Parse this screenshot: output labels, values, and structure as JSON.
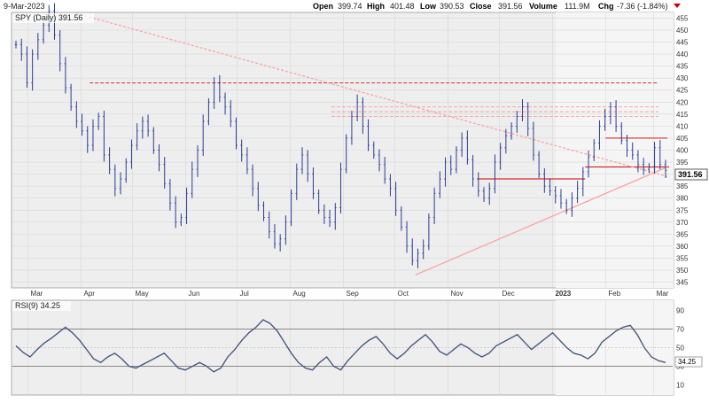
{
  "header": {
    "date": "9-Mar-2023",
    "open_label": "Open",
    "open": "399.74",
    "high_label": "High",
    "high": "401.48",
    "low_label": "Low",
    "low": "390.53",
    "close_label": "Close",
    "close": "391.56",
    "volume_label": "Volume",
    "volume": "111.9M",
    "chg_label": "Chg",
    "chg": "-7.36 (-1.84%)"
  },
  "price_panel": {
    "legend": "SPY (Daily) 391.56",
    "last_price": "391.56",
    "y_ticks": [
      "455",
      "450",
      "445",
      "440",
      "435",
      "430",
      "425",
      "420",
      "415",
      "410",
      "405",
      "400",
      "395",
      "390",
      "385",
      "380",
      "375",
      "370",
      "365",
      "360",
      "355",
      "350",
      "345"
    ]
  },
  "rsi_panel": {
    "legend": "RSI(9) 34.25",
    "last_value": "34.25",
    "y_ticks": [
      "90",
      "70",
      "50",
      "30",
      "10"
    ]
  },
  "x_axis": {
    "labels": [
      "Mar",
      "Apr",
      "May",
      "Jun",
      "Jul",
      "Aug",
      "Sep",
      "Oct",
      "Nov",
      "Dec",
      "2023",
      "Feb",
      "Mar"
    ]
  },
  "colors": {
    "price_bars": "#2b3d8f",
    "rsi_line": "#4a5a7e",
    "trendline": "#f4a6a6",
    "support": "#cc3333",
    "resistance_dashed": "#cc3333",
    "panel_bg": "#efefef",
    "panel_bg_recent": "#f6f6f6",
    "down_arrow": "#cc0000"
  },
  "chart_data": [
    {
      "type": "ohlc",
      "title": "SPY (Daily) 391.56",
      "ylim": [
        343,
        457
      ],
      "x": [
        "2022-03",
        "2022-04",
        "2022-05",
        "2022-06",
        "2022-07",
        "2022-08",
        "2022-09",
        "2022-10",
        "2022-11",
        "2022-12",
        "2023-01",
        "2023-02",
        "2023-03"
      ],
      "close_series": [
        444,
        440,
        428,
        440,
        446,
        452,
        458,
        448,
        436,
        426,
        418,
        412,
        408,
        402,
        410,
        414,
        398,
        392,
        384,
        388,
        395,
        402,
        408,
        412,
        408,
        400,
        394,
        386,
        378,
        370,
        372,
        382,
        392,
        400,
        412,
        420,
        428,
        422,
        418,
        412,
        402,
        398,
        392,
        384,
        377,
        372,
        366,
        361,
        363,
        370,
        382,
        392,
        398,
        390,
        382,
        375,
        372,
        370,
        376,
        392,
        405,
        414,
        420,
        410,
        402,
        398,
        394,
        388,
        384,
        375,
        368,
        360,
        354,
        357,
        360,
        372,
        382,
        388,
        395,
        392,
        400,
        405,
        396,
        388,
        383,
        380,
        384,
        395,
        401,
        406,
        410,
        414,
        418,
        409,
        398,
        390,
        385,
        383,
        381,
        378,
        375,
        380,
        384,
        391,
        397,
        403,
        410,
        414,
        418,
        410,
        404,
        400,
        398,
        394,
        392,
        393,
        401,
        394,
        391.56
      ],
      "horizontal_levels": [
        428,
        418,
        416,
        414,
        405,
        393,
        388
      ],
      "trendlines": [
        {
          "from": [
            "2022-03-29",
            457
          ],
          "to": [
            "2023-03-09",
            389
          ]
        },
        {
          "from": [
            "2022-10-13",
            348
          ],
          "to": [
            "2023-03-09",
            393
          ]
        }
      ]
    },
    {
      "type": "line",
      "title": "RSI(9) 34.25",
      "ylim": [
        0,
        100
      ],
      "reference_levels": [
        70,
        50,
        30
      ],
      "values": [
        52,
        45,
        40,
        48,
        55,
        60,
        66,
        72,
        66,
        58,
        48,
        38,
        34,
        40,
        44,
        38,
        30,
        28,
        32,
        36,
        40,
        44,
        36,
        28,
        26,
        30,
        34,
        30,
        24,
        28,
        40,
        48,
        58,
        66,
        72,
        80,
        76,
        68,
        56,
        44,
        34,
        28,
        26,
        34,
        40,
        30,
        26,
        36,
        44,
        52,
        58,
        62,
        54,
        44,
        38,
        44,
        52,
        58,
        64,
        56,
        46,
        42,
        48,
        54,
        50,
        44,
        40,
        44,
        52,
        56,
        60,
        64,
        56,
        48,
        54,
        60,
        66,
        58,
        50,
        44,
        42,
        38,
        44,
        56,
        62,
        68,
        72,
        74,
        64,
        50,
        40,
        36,
        34
      ]
    }
  ]
}
